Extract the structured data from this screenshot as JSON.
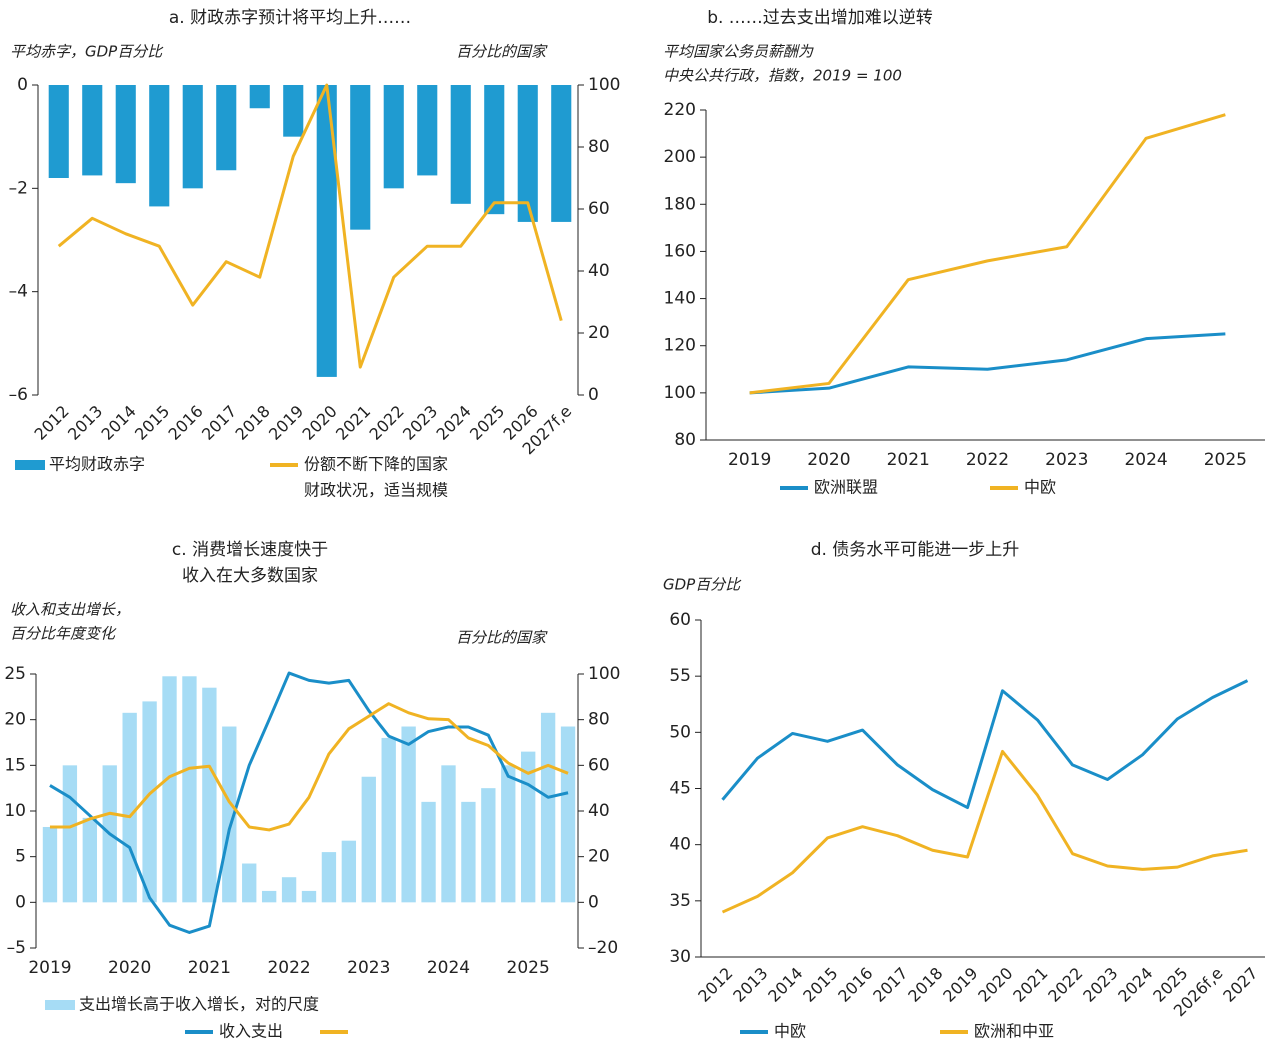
{
  "chart_data": [
    {
      "type": "combo",
      "title": "a. 财政赤字预计将平均上升……",
      "ylabel": [
        "平均赤字，GDP百分比"
      ],
      "y2label": [
        "百分比的国家"
      ],
      "categories": [
        "2012",
        "2013",
        "2014",
        "2015",
        "2016",
        "2017",
        "2018",
        "2019",
        "2020",
        "2021",
        "2022",
        "2023",
        "2024",
        "2025",
        "2026",
        "2027f,e"
      ],
      "ylim": [
        -6,
        0
      ],
      "yticks": [
        {
          "value": 0,
          "label": "0"
        },
        {
          "value": -2,
          "label": "–2"
        },
        {
          "value": -4,
          "label": "–4"
        },
        {
          "value": -6,
          "label": "–6"
        }
      ],
      "y2lim": [
        0,
        100
      ],
      "y2ticks": [
        0,
        20,
        40,
        60,
        80,
        100
      ],
      "series": [
        {
          "name": [
            "平均财政赤字"
          ],
          "type": "bar",
          "color": "#1f9bd1",
          "values": [
            -1.8,
            -1.75,
            -1.9,
            -2.35,
            -2.0,
            -1.65,
            -0.45,
            -1.0,
            -5.65,
            -2.8,
            -2.0,
            -1.75,
            -2.3,
            -2.5,
            -2.65,
            -2.65
          ]
        },
        {
          "name": [
            "份额不断下降的国家",
            "财政状况，适当规模"
          ],
          "type": "line",
          "axis": "y2",
          "color": "#f0b323",
          "values": [
            48,
            57,
            52,
            48,
            29,
            43,
            38,
            77,
            100,
            9,
            38,
            48,
            48,
            62,
            62,
            24
          ]
        }
      ]
    },
    {
      "type": "line",
      "title": "b. ……过去支出增加难以逆转",
      "ylabel": [
        "平均国家公务员薪酬为",
        "中央公共行政，指数，2019 = 100"
      ],
      "categories": [
        "2019",
        "2020",
        "2021",
        "2022",
        "2023",
        "2024",
        "2025"
      ],
      "ylim": [
        80,
        220
      ],
      "yticks": [
        80,
        100,
        120,
        140,
        160,
        180,
        200,
        220
      ],
      "series": [
        {
          "name": [
            "欧洲联盟"
          ],
          "type": "line",
          "color": "#1a8ec8",
          "values": [
            100,
            102,
            111,
            110,
            114,
            123,
            125
          ]
        },
        {
          "name": [
            "中欧"
          ],
          "type": "line",
          "color": "#f0b323",
          "values": [
            100,
            104,
            148,
            156,
            162,
            208,
            218
          ]
        }
      ]
    },
    {
      "type": "combo",
      "title": [
        "c. 消费增长速度快于",
        "收入在大多数国家"
      ],
      "ylabel": [
        "收入和支出增长，",
        "百分比年度变化"
      ],
      "y2label": [
        "百分比的国家"
      ],
      "categories": [
        "2019",
        null,
        null,
        null,
        "2020",
        null,
        null,
        null,
        "2021",
        null,
        null,
        null,
        "2022",
        null,
        null,
        null,
        "2023",
        null,
        null,
        null,
        "2024",
        null,
        null,
        null,
        "2025",
        null,
        null
      ],
      "ylim": [
        -5,
        25
      ],
      "yticks": [
        {
          "value": -5,
          "label": "–5"
        },
        0,
        5,
        10,
        15,
        20,
        25
      ],
      "y2lim": [
        -20,
        100
      ],
      "y2ticks": [
        {
          "value": -20,
          "label": "–20"
        },
        0,
        20,
        40,
        60,
        80,
        100
      ],
      "series": [
        {
          "name": [
            "支出增长高于收入增长，对的尺度"
          ],
          "type": "bar",
          "axis": "y2",
          "color": "#a6dcf5",
          "values": [
            33,
            60,
            37,
            60,
            83,
            88,
            99,
            99,
            94,
            77,
            17,
            5,
            11,
            5,
            22,
            27,
            55,
            72,
            77,
            44,
            60,
            44,
            50,
            60,
            66,
            83,
            77
          ]
        },
        {
          "name": [
            "收入支出"
          ],
          "type": "line",
          "color": "#1a8ec8",
          "values": [
            12.8,
            11.5,
            9.5,
            7.5,
            6,
            0.5,
            -2.5,
            -3.3,
            -2.6,
            8,
            15,
            20,
            25.1,
            24.3,
            24,
            24.3,
            21,
            18.2,
            17.3,
            18.7,
            19.2,
            19.2,
            18.3,
            13.8,
            12.9,
            11.5,
            12
          ]
        },
        {
          "type": "line",
          "axis": "y2",
          "color": "#f0b323",
          "values": [
            33,
            33,
            36.5,
            39,
            37.5,
            47.5,
            55,
            58.7,
            59.6,
            44,
            33,
            31.7,
            34.3,
            46,
            65,
            76,
            81.5,
            87,
            83,
            80.4,
            80,
            72,
            68.7,
            61,
            56.5,
            60,
            56.5
          ]
        }
      ]
    },
    {
      "type": "line",
      "title": "d. 债务水平可能进一步上升",
      "ylabel": [
        "GDP百分比"
      ],
      "categories": [
        "2012",
        "2013",
        "2014",
        "2015",
        "2016",
        "2017",
        "2018",
        "2019",
        "2020",
        "2021",
        "2022",
        "2023",
        "2024",
        "2025",
        "2026f,e",
        "2027"
      ],
      "ylim": [
        30,
        60
      ],
      "yticks": [
        30,
        35,
        40,
        45,
        50,
        55,
        60
      ],
      "series": [
        {
          "name": [
            "中欧"
          ],
          "type": "line",
          "color": "#1a8ec8",
          "values": [
            44,
            47.7,
            49.9,
            49.2,
            50.2,
            47.1,
            44.9,
            43.3,
            53.7,
            51.1,
            47.1,
            45.8,
            48,
            51.2,
            53.1,
            54.6
          ]
        },
        {
          "name": [
            "欧洲和中亚"
          ],
          "type": "line",
          "color": "#f0b323",
          "values": [
            34,
            35.4,
            37.5,
            40.6,
            41.6,
            40.8,
            39.5,
            38.9,
            48.3,
            44.4,
            39.2,
            38.1,
            37.8,
            38,
            39,
            39.5
          ]
        }
      ]
    }
  ]
}
